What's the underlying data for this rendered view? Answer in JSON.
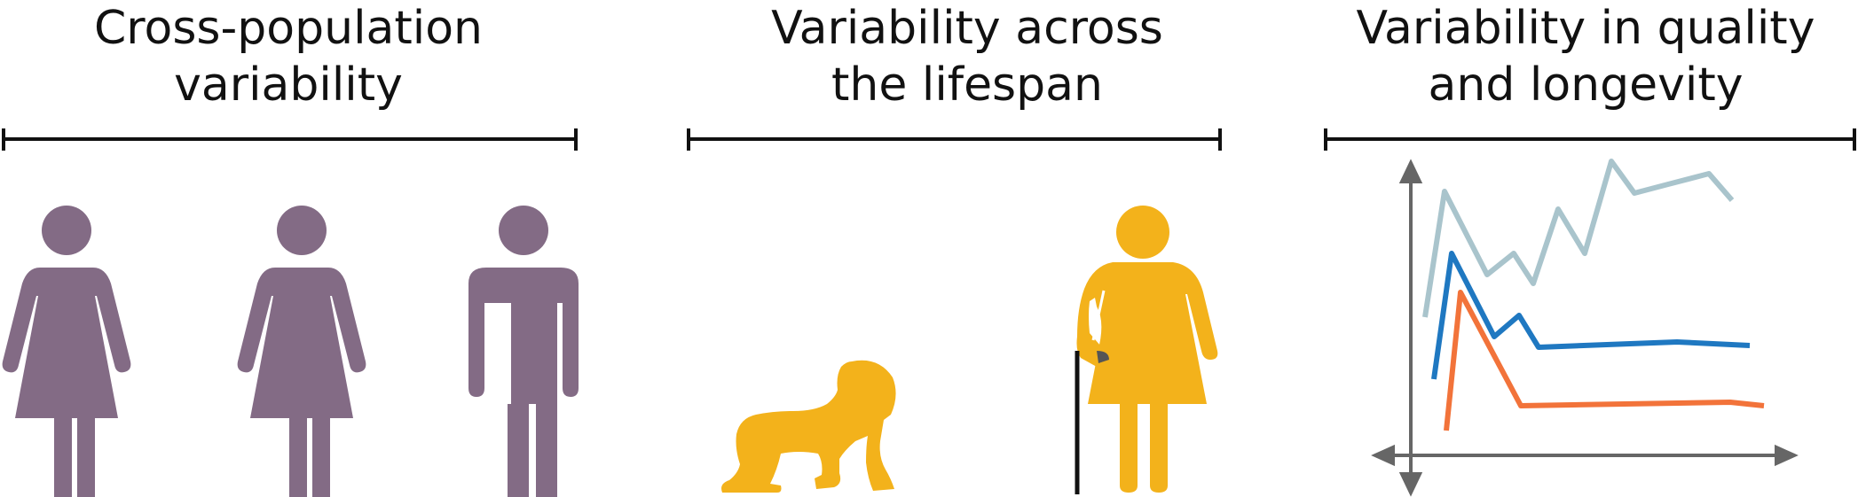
{
  "panels": [
    {
      "title_line1": "Cross-population",
      "title_line2": "variability",
      "figures": [
        "woman-figure",
        "woman-figure",
        "man-figure"
      ],
      "figure_color": "#836b85"
    },
    {
      "title_line1": "Variability across",
      "title_line2": "the lifespan",
      "figures": [
        "crawling-baby-figure",
        "elderly-woman-with-cane-figure"
      ],
      "figure_color": "#f3b21b"
    },
    {
      "title_line1": "Variability in quality",
      "title_line2": "and longevity",
      "line_colors": [
        "#a9c4cc",
        "#1f78c1",
        "#f2733a"
      ],
      "axis_color": "#666666"
    }
  ]
}
